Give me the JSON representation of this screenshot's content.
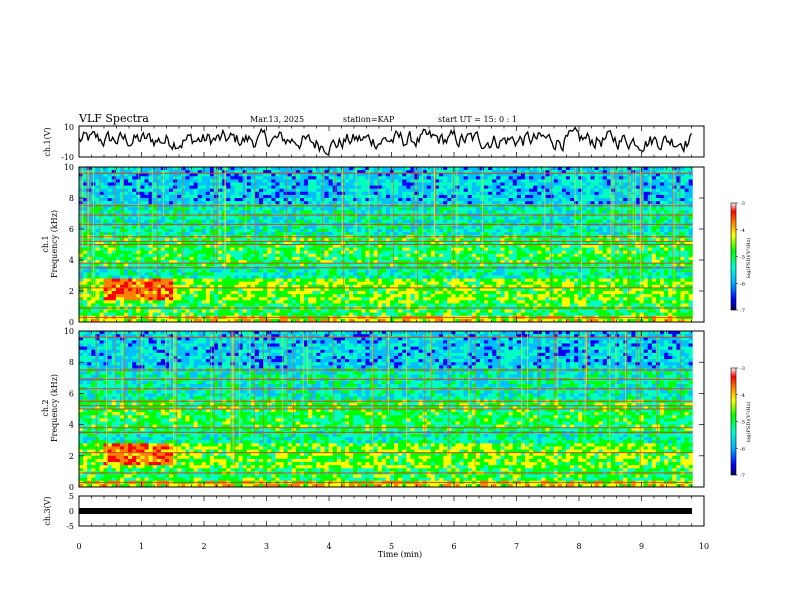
{
  "header": {
    "title": "VLF Spectra",
    "date": "Mar.13, 2025",
    "station": "station=KAP",
    "start": "start  UT =  15: 0  : 1"
  },
  "chart_data": [
    {
      "type": "line",
      "name": "ch1-waveform",
      "ylabel": "ch.1(V)",
      "ylim": [
        -10,
        10
      ],
      "y_ticks": [
        "10",
        "-10"
      ],
      "xlim": [
        0,
        10
      ],
      "grid": false
    },
    {
      "type": "heatmap",
      "name": "ch1-spectrogram",
      "ylabel": "ch.1\nFrequency  (kHz)",
      "xlim": [
        0,
        10
      ],
      "ylim": [
        0,
        10
      ],
      "y_ticks": [
        "0",
        "2",
        "4",
        "6",
        "8",
        "10"
      ],
      "zlim": [
        -7,
        -3
      ],
      "colorbar_label": "log(PSD)(V²/Hz)",
      "colorbar_ticks": [
        "-3",
        "-4",
        "-5",
        "-6",
        "-7"
      ],
      "colormap": [
        "#000080",
        "#0000ff",
        "#00c0ff",
        "#00ffc0",
        "#00ff00",
        "#ffff00",
        "#ff8000",
        "#ff0000",
        "#ffffff"
      ]
    },
    {
      "type": "heatmap",
      "name": "ch2-spectrogram",
      "ylabel": "ch.2\nFrequency  (kHz)",
      "xlim": [
        0,
        10
      ],
      "ylim": [
        0,
        10
      ],
      "y_ticks": [
        "0",
        "2",
        "4",
        "6",
        "8",
        "10"
      ],
      "zlim": [
        -7,
        -3
      ],
      "colorbar_label": "log(PSD)(V²/Hz)",
      "colorbar_ticks": [
        "-3",
        "-4",
        "-5",
        "-6",
        "-7"
      ]
    },
    {
      "type": "line",
      "name": "ch3-level",
      "ylabel": "ch.3(V)",
      "ylim": [
        -5,
        5
      ],
      "y_ticks": [
        "5",
        "0",
        "-5"
      ],
      "xlim": [
        0,
        10
      ],
      "level": 0
    }
  ],
  "xaxis": {
    "label": "Time  (min)",
    "ticks": [
      "0",
      "1",
      "2",
      "3",
      "4",
      "5",
      "6",
      "7",
      "8",
      "9",
      "10"
    ]
  }
}
